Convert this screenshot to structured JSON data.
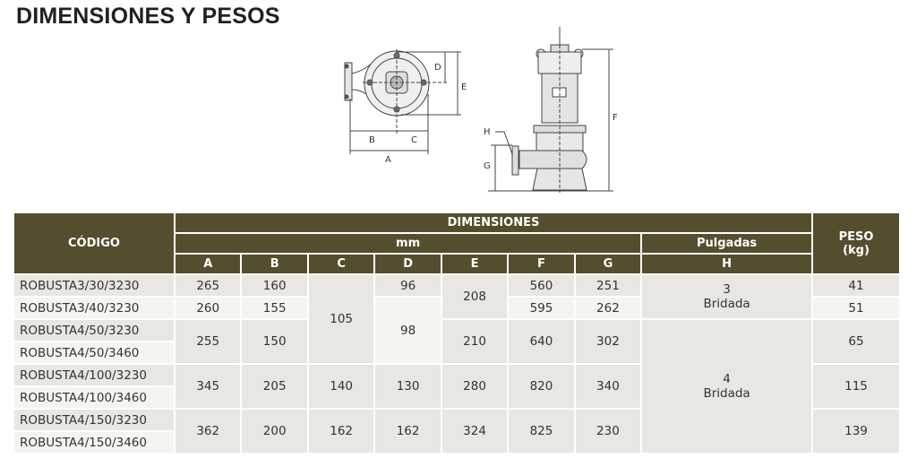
{
  "title": "DIMENSIONES Y PESOS",
  "diagram": {
    "labels": {
      "A": "A",
      "B": "B",
      "C": "C",
      "D": "D",
      "E": "E",
      "F": "F",
      "G": "G",
      "H": "H"
    }
  },
  "table": {
    "header": {
      "code": "CÓDIGO",
      "dimensions": "DIMENSIONES",
      "mm": "mm",
      "inches": "Pulgadas",
      "weight": "PESO\n(kg)",
      "weight_line1": "PESO",
      "weight_line2": "(kg)",
      "cols": [
        "A",
        "B",
        "C",
        "D",
        "E",
        "F",
        "G",
        "H"
      ]
    },
    "codes": [
      "ROBUSTA3/30/3230",
      "ROBUSTA3/40/3230",
      "ROBUSTA4/50/3230",
      "ROBUSTA4/50/3460",
      "ROBUSTA4/100/3230",
      "ROBUSTA4/100/3460",
      "ROBUSTA4/150/3230",
      "ROBUSTA4/150/3460"
    ],
    "A": [
      "265",
      "260",
      "255",
      "345",
      "362"
    ],
    "B": [
      "160",
      "155",
      "150",
      "205",
      "200"
    ],
    "C": [
      "105",
      "140",
      "162"
    ],
    "D": [
      "96",
      "98",
      "130",
      "162"
    ],
    "E": [
      "208",
      "210",
      "280",
      "324"
    ],
    "F": [
      "560",
      "595",
      "640",
      "820",
      "825"
    ],
    "G": [
      "251",
      "262",
      "302",
      "340",
      "230"
    ],
    "H": [
      {
        "size": "3",
        "type": "Bridada"
      },
      {
        "size": "4",
        "type": "Bridada"
      }
    ],
    "peso": [
      "41",
      "51",
      "65",
      "115",
      "139"
    ]
  },
  "colors": {
    "header_bg": "#554e2e",
    "row_dark": "#e9e7e2",
    "row_light": "#f5f4f1"
  }
}
